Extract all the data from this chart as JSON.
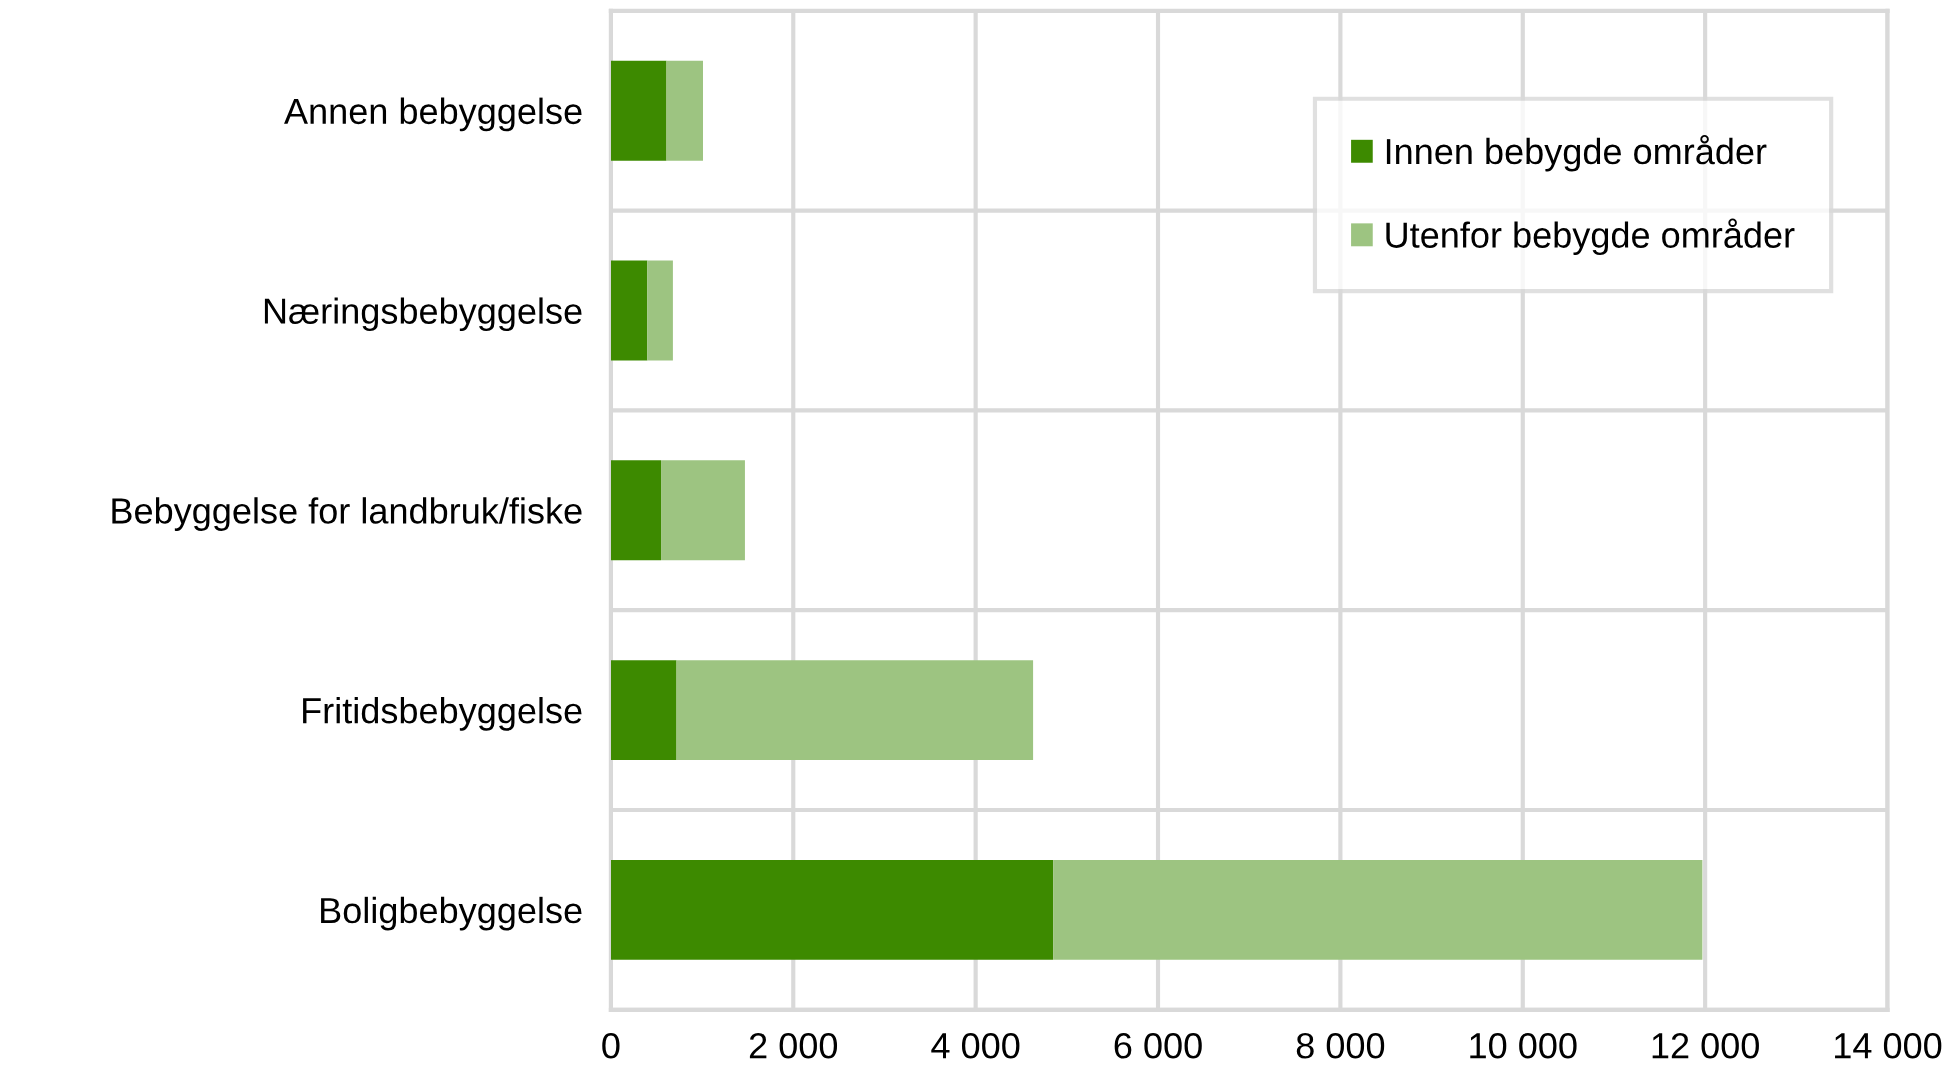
{
  "chart_data": {
    "type": "bar",
    "orientation": "horizontal",
    "stacked": true,
    "categories": [
      "Annen bebyggelse",
      "Næringsbebyggelse",
      "Bebyggelse for landbruk/fiske",
      "Fritidsbebyggelse",
      "Boligbebyggelse"
    ],
    "series": [
      {
        "name": "Innen bebygde områder",
        "color": "#3d8a00",
        "values": [
          610,
          400,
          550,
          720,
          4850
        ]
      },
      {
        "name": "Utenfor bebygde områder",
        "color": "#9dc481",
        "values": [
          400,
          280,
          920,
          3910,
          7120
        ]
      }
    ],
    "xlim": [
      0,
      14000
    ],
    "xticks": [
      0,
      {
        "value": 2000,
        "label": "2 000"
      },
      {
        "value": 4000,
        "label": "4 000"
      },
      {
        "value": 6000,
        "label": "6 000"
      },
      {
        "value": 8000,
        "label": "8 000"
      },
      {
        "value": 10000,
        "label": "10 000"
      },
      {
        "value": 12000,
        "label": "12 000"
      },
      {
        "value": 14000,
        "label": "14 000"
      }
    ],
    "grid": true,
    "legend": "top right"
  }
}
